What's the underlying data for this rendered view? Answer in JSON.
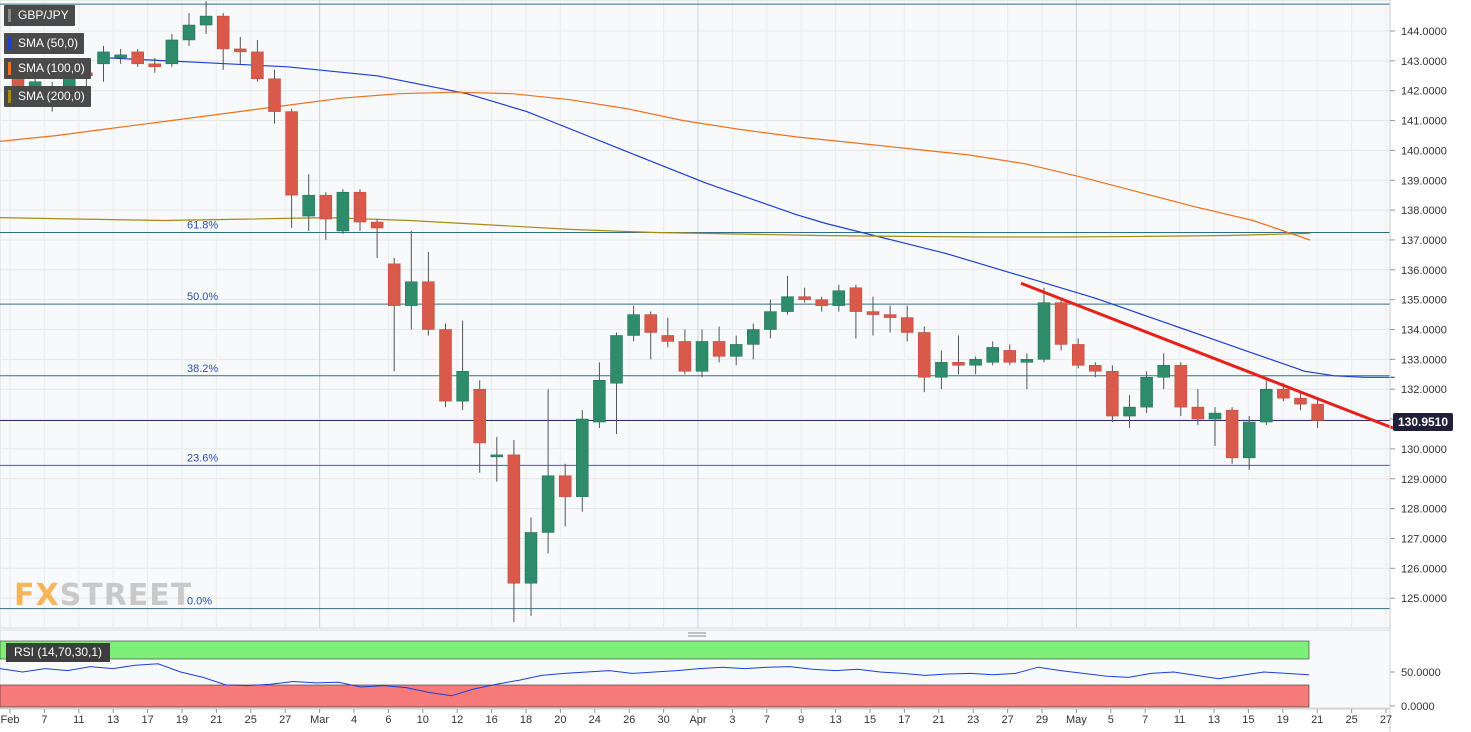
{
  "legend": {
    "symbol": "GBP/JPY",
    "sma50": {
      "label": "SMA (50,0)",
      "color": "#1d3fd6"
    },
    "sma100": {
      "label": "SMA (100,0)",
      "color": "#f07020"
    },
    "sma200": {
      "label": "SMA (200,0)",
      "color": "#a88a12"
    }
  },
  "rsi": {
    "label": "RSI (14,70,30,1)",
    "y_ticks": [
      "50.0000",
      "0.0000"
    ]
  },
  "logo": {
    "part1": "FX",
    "part2": "STREET"
  },
  "last_price": "130.9510",
  "chart_data": {
    "type": "candlestick",
    "symbol": "GBP/JPY",
    "ylim": [
      124.2,
      145.0
    ],
    "y_ticks": [
      "144.0000",
      "143.0000",
      "142.0000",
      "141.0000",
      "140.0000",
      "139.0000",
      "138.0000",
      "137.0000",
      "136.0000",
      "135.0000",
      "134.0000",
      "133.0000",
      "132.0000",
      "131.0000",
      "130.0000",
      "129.0000",
      "128.0000",
      "127.0000",
      "126.0000",
      "125.0000"
    ],
    "x_labels": [
      "Feb",
      "7",
      "11",
      "13",
      "17",
      "19",
      "21",
      "25",
      "27",
      "Mar",
      "4",
      "6",
      "10",
      "12",
      "16",
      "18",
      "20",
      "24",
      "26",
      "30",
      "Apr",
      "3",
      "7",
      "9",
      "13",
      "15",
      "17",
      "21",
      "23",
      "27",
      "29",
      "May",
      "5",
      "7",
      "11",
      "13",
      "15",
      "19",
      "21",
      "25",
      "27"
    ],
    "fibonacci": [
      {
        "label": "61.8%",
        "value": 137.25
      },
      {
        "label": "50.0%",
        "value": 134.85
      },
      {
        "label": "38.2%",
        "value": 132.45
      },
      {
        "label": "23.6%",
        "value": 129.45
      },
      {
        "label": "0.0%",
        "value": 124.65
      }
    ],
    "top_line": 144.9,
    "current_price": 130.95,
    "trendline": {
      "from": [
        60,
        135.55
      ],
      "to": [
        80,
        130.7
      ]
    },
    "candles": [
      {
        "o": 142.5,
        "h": 142.9,
        "l": 141.6,
        "c": 141.8
      },
      {
        "o": 141.8,
        "h": 142.5,
        "l": 141.6,
        "c": 142.3
      },
      {
        "o": 141.5,
        "h": 142.3,
        "l": 141.3,
        "c": 142.1
      },
      {
        "o": 142.1,
        "h": 142.8,
        "l": 142.0,
        "c": 142.6
      },
      {
        "o": 142.6,
        "h": 143.0,
        "l": 142.1,
        "c": 142.5
      },
      {
        "o": 142.9,
        "h": 143.5,
        "l": 142.3,
        "c": 143.3
      },
      {
        "o": 143.1,
        "h": 143.4,
        "l": 142.9,
        "c": 143.2
      },
      {
        "o": 143.3,
        "h": 143.4,
        "l": 142.8,
        "c": 142.9
      },
      {
        "o": 142.9,
        "h": 143.1,
        "l": 142.6,
        "c": 142.8
      },
      {
        "o": 142.9,
        "h": 143.9,
        "l": 142.8,
        "c": 143.7
      },
      {
        "o": 143.7,
        "h": 144.6,
        "l": 143.5,
        "c": 144.2
      },
      {
        "o": 144.2,
        "h": 145.0,
        "l": 143.9,
        "c": 144.5
      },
      {
        "o": 144.5,
        "h": 144.6,
        "l": 142.7,
        "c": 143.4
      },
      {
        "o": 143.4,
        "h": 143.8,
        "l": 142.9,
        "c": 143.3
      },
      {
        "o": 143.3,
        "h": 143.7,
        "l": 142.3,
        "c": 142.4
      },
      {
        "o": 142.4,
        "h": 142.7,
        "l": 140.9,
        "c": 141.3
      },
      {
        "o": 141.3,
        "h": 141.4,
        "l": 137.4,
        "c": 138.5
      },
      {
        "o": 137.8,
        "h": 139.2,
        "l": 137.3,
        "c": 138.5
      },
      {
        "o": 138.5,
        "h": 138.6,
        "l": 137.0,
        "c": 137.7
      },
      {
        "o": 137.3,
        "h": 138.7,
        "l": 137.2,
        "c": 138.6
      },
      {
        "o": 138.6,
        "h": 138.7,
        "l": 137.3,
        "c": 137.6
      },
      {
        "o": 137.6,
        "h": 137.7,
        "l": 136.4,
        "c": 137.4
      },
      {
        "o": 136.2,
        "h": 136.4,
        "l": 132.6,
        "c": 134.8
      },
      {
        "o": 134.8,
        "h": 137.3,
        "l": 134.0,
        "c": 135.6
      },
      {
        "o": 135.6,
        "h": 136.6,
        "l": 133.8,
        "c": 134.0
      },
      {
        "o": 134.0,
        "h": 134.2,
        "l": 131.4,
        "c": 131.6
      },
      {
        "o": 131.6,
        "h": 134.3,
        "l": 131.3,
        "c": 132.6
      },
      {
        "o": 132.0,
        "h": 132.3,
        "l": 129.2,
        "c": 130.2
      },
      {
        "o": 129.8,
        "h": 130.4,
        "l": 128.9,
        "c": 129.8
      },
      {
        "o": 129.8,
        "h": 130.3,
        "l": 124.2,
        "c": 125.5
      },
      {
        "o": 125.5,
        "h": 127.7,
        "l": 124.4,
        "c": 127.2
      },
      {
        "o": 127.2,
        "h": 132.0,
        "l": 126.5,
        "c": 129.1
      },
      {
        "o": 129.1,
        "h": 129.5,
        "l": 127.4,
        "c": 128.4
      },
      {
        "o": 128.4,
        "h": 131.3,
        "l": 127.9,
        "c": 131.0
      },
      {
        "o": 130.9,
        "h": 132.9,
        "l": 130.7,
        "c": 132.3
      },
      {
        "o": 132.2,
        "h": 133.9,
        "l": 130.5,
        "c": 133.8
      },
      {
        "o": 133.8,
        "h": 134.8,
        "l": 133.6,
        "c": 134.5
      },
      {
        "o": 134.5,
        "h": 134.6,
        "l": 133.0,
        "c": 133.9
      },
      {
        "o": 133.8,
        "h": 134.4,
        "l": 133.4,
        "c": 133.6
      },
      {
        "o": 133.6,
        "h": 134.0,
        "l": 132.5,
        "c": 132.6
      },
      {
        "o": 132.6,
        "h": 134.0,
        "l": 132.4,
        "c": 133.6
      },
      {
        "o": 133.6,
        "h": 134.1,
        "l": 132.9,
        "c": 133.1
      },
      {
        "o": 133.1,
        "h": 133.8,
        "l": 132.8,
        "c": 133.5
      },
      {
        "o": 133.5,
        "h": 134.2,
        "l": 133.0,
        "c": 134.0
      },
      {
        "o": 134.0,
        "h": 135.0,
        "l": 133.7,
        "c": 134.6
      },
      {
        "o": 134.6,
        "h": 135.8,
        "l": 134.5,
        "c": 135.1
      },
      {
        "o": 135.1,
        "h": 135.4,
        "l": 134.9,
        "c": 135.0
      },
      {
        "o": 135.0,
        "h": 135.1,
        "l": 134.6,
        "c": 134.8
      },
      {
        "o": 134.8,
        "h": 135.5,
        "l": 134.6,
        "c": 135.3
      },
      {
        "o": 135.4,
        "h": 135.5,
        "l": 133.7,
        "c": 134.6
      },
      {
        "o": 134.6,
        "h": 135.1,
        "l": 133.8,
        "c": 134.5
      },
      {
        "o": 134.5,
        "h": 134.8,
        "l": 133.9,
        "c": 134.4
      },
      {
        "o": 134.4,
        "h": 134.8,
        "l": 133.6,
        "c": 133.9
      },
      {
        "o": 133.9,
        "h": 134.1,
        "l": 131.9,
        "c": 132.4
      },
      {
        "o": 132.4,
        "h": 133.3,
        "l": 132.0,
        "c": 132.9
      },
      {
        "o": 132.9,
        "h": 133.8,
        "l": 132.5,
        "c": 132.8
      },
      {
        "o": 132.8,
        "h": 133.1,
        "l": 132.5,
        "c": 133.0
      },
      {
        "o": 132.9,
        "h": 133.6,
        "l": 132.8,
        "c": 133.4
      },
      {
        "o": 133.3,
        "h": 133.5,
        "l": 132.8,
        "c": 132.9
      },
      {
        "o": 132.9,
        "h": 133.2,
        "l": 132.0,
        "c": 133.0
      },
      {
        "o": 133.0,
        "h": 135.4,
        "l": 132.9,
        "c": 134.9
      },
      {
        "o": 134.9,
        "h": 135.0,
        "l": 133.3,
        "c": 133.5
      },
      {
        "o": 133.5,
        "h": 133.7,
        "l": 132.7,
        "c": 132.8
      },
      {
        "o": 132.8,
        "h": 132.9,
        "l": 132.4,
        "c": 132.6
      },
      {
        "o": 132.6,
        "h": 132.8,
        "l": 130.9,
        "c": 131.1
      },
      {
        "o": 131.1,
        "h": 131.8,
        "l": 130.7,
        "c": 131.4
      },
      {
        "o": 131.4,
        "h": 132.6,
        "l": 131.2,
        "c": 132.4
      },
      {
        "o": 132.4,
        "h": 133.2,
        "l": 132.0,
        "c": 132.8
      },
      {
        "o": 132.8,
        "h": 132.9,
        "l": 131.1,
        "c": 131.4
      },
      {
        "o": 131.4,
        "h": 132.0,
        "l": 130.8,
        "c": 131.0
      },
      {
        "o": 131.0,
        "h": 131.4,
        "l": 130.1,
        "c": 131.2
      },
      {
        "o": 131.3,
        "h": 131.4,
        "l": 129.5,
        "c": 129.7
      },
      {
        "o": 129.7,
        "h": 131.1,
        "l": 129.3,
        "c": 130.9
      },
      {
        "o": 130.9,
        "h": 132.3,
        "l": 130.8,
        "c": 132.0
      },
      {
        "o": 132.0,
        "h": 132.2,
        "l": 131.6,
        "c": 131.7
      },
      {
        "o": 131.7,
        "h": 131.9,
        "l": 131.3,
        "c": 131.5
      },
      {
        "o": 131.5,
        "h": 131.7,
        "l": 130.7,
        "c": 130.95
      }
    ],
    "sma50": [
      143.1,
      143.05,
      143.0,
      142.95,
      142.9,
      142.85,
      142.8,
      142.7,
      142.6,
      142.5,
      142.3,
      142.1,
      141.9,
      141.6,
      141.3,
      140.9,
      140.5,
      140.1,
      139.7,
      139.3,
      138.9,
      138.55,
      138.2,
      137.85,
      137.55,
      137.3,
      137.05,
      136.8,
      136.55,
      136.25,
      135.95,
      135.65,
      135.35,
      135.05,
      134.7,
      134.35,
      134.0,
      133.65,
      133.3,
      132.95,
      132.6,
      132.45,
      132.4,
      132.4
    ],
    "sma50_x": [
      3,
      4,
      5,
      6,
      7,
      8,
      9,
      10,
      11,
      12,
      13,
      14,
      15,
      16,
      17,
      18,
      19,
      20,
      21,
      22,
      23,
      24,
      25,
      26,
      27,
      28,
      29,
      30,
      31,
      32,
      33,
      34,
      35,
      36,
      37,
      38,
      39,
      40,
      41,
      42,
      43,
      44,
      45,
      46
    ],
    "sma100": [
      140.3,
      140.5,
      140.75,
      141.0,
      141.25,
      141.5,
      141.75,
      141.9,
      141.95,
      141.9,
      141.7,
      141.4,
      141.0,
      140.7,
      140.45,
      140.25,
      140.05,
      139.85,
      139.55,
      139.1,
      138.6,
      138.1,
      137.65,
      137.0
    ],
    "sma200": [
      137.75,
      137.7,
      137.65,
      137.7,
      137.75,
      137.65,
      137.5,
      137.35,
      137.25,
      137.2,
      137.15,
      137.12,
      137.1,
      137.1,
      137.12,
      137.15,
      137.22
    ],
    "rsi_series": [
      55,
      50,
      55,
      52,
      58,
      55,
      60,
      62,
      50,
      42,
      31,
      30,
      32,
      36,
      34,
      35,
      28,
      30,
      27,
      20,
      15,
      25,
      32,
      38,
      45,
      48,
      50,
      52,
      48,
      50,
      52,
      55,
      57,
      55,
      57,
      58,
      54,
      52,
      54,
      50,
      48,
      45,
      47,
      48,
      46,
      48,
      57,
      52,
      48,
      44,
      42,
      48,
      50,
      45,
      40,
      45,
      50,
      48,
      46
    ]
  }
}
